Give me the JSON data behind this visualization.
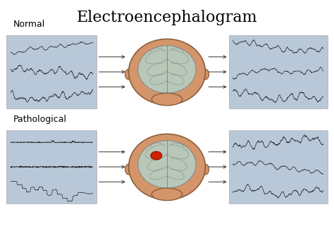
{
  "title": "Electroencephalogram",
  "title_fontsize": 16,
  "title_font": "serif",
  "background_color": "#ffffff",
  "panel_bg": "#b8c8d8",
  "normal_label": "Normal",
  "patho_label": "Pathological",
  "label_fontsize": 9,
  "fig_width": 4.74,
  "fig_height": 3.55,
  "dpi": 100,
  "skin_color": "#d4956a",
  "brain_color": "#b8c8b8",
  "brain_outline": "#888888",
  "red_dot_color": "#cc2200",
  "arrow_color": "#333333"
}
